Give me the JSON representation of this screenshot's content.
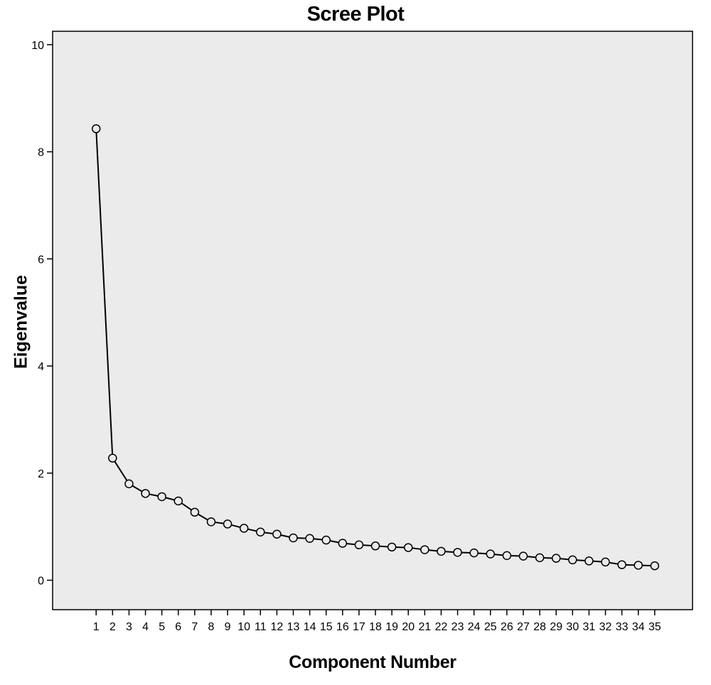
{
  "chart_data": {
    "type": "line",
    "title": "Scree Plot",
    "xlabel": "Component Number",
    "ylabel": "Eigenvalue",
    "x": [
      1,
      2,
      3,
      4,
      5,
      6,
      7,
      8,
      9,
      10,
      11,
      12,
      13,
      14,
      15,
      16,
      17,
      18,
      19,
      20,
      21,
      22,
      23,
      24,
      25,
      26,
      27,
      28,
      29,
      30,
      31,
      32,
      33,
      34,
      35
    ],
    "series": [
      {
        "values": [
          8.43,
          2.28,
          1.8,
          1.62,
          1.56,
          1.48,
          1.27,
          1.09,
          1.05,
          0.97,
          0.9,
          0.86,
          0.79,
          0.78,
          0.75,
          0.69,
          0.66,
          0.64,
          0.62,
          0.61,
          0.57,
          0.54,
          0.52,
          0.51,
          0.49,
          0.46,
          0.45,
          0.42,
          0.41,
          0.38,
          0.36,
          0.34,
          0.29,
          0.28,
          0.27
        ],
        "marker": "open-circle",
        "color": "#000000"
      }
    ],
    "ylim": [
      -0.55,
      10.25
    ],
    "xlim": [
      -1.65,
      37.3
    ],
    "yticks": [
      0,
      2,
      4,
      6,
      8,
      10
    ],
    "xticks": [
      1,
      2,
      3,
      4,
      5,
      6,
      7,
      8,
      9,
      10,
      11,
      12,
      13,
      14,
      15,
      16,
      17,
      18,
      19,
      20,
      21,
      22,
      23,
      24,
      25,
      26,
      27,
      28,
      29,
      30,
      31,
      32,
      33,
      34,
      35
    ],
    "grid": false,
    "background_color": "#ebebeb"
  }
}
